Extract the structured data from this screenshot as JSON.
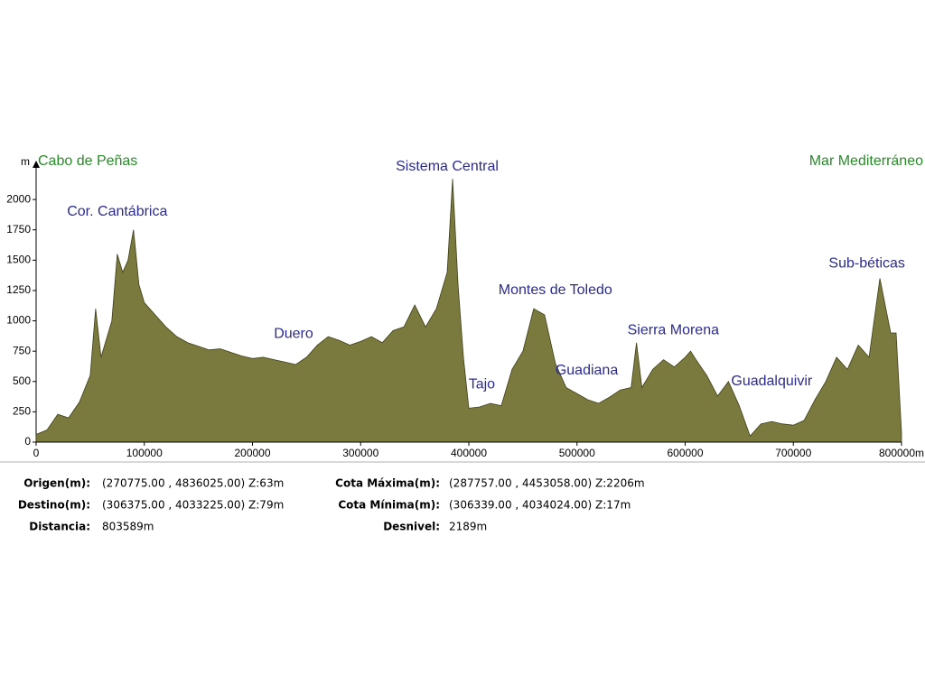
{
  "chart_data": {
    "type": "area",
    "y_unit": "m",
    "start_label": "Cabo de Peñas",
    "end_label": "Mar Mediterráneo",
    "x": [
      0,
      10000,
      20000,
      30000,
      40000,
      50000,
      55000,
      60000,
      70000,
      75000,
      80000,
      85000,
      90000,
      95000,
      100000,
      110000,
      120000,
      130000,
      140000,
      150000,
      160000,
      170000,
      180000,
      190000,
      200000,
      210000,
      220000,
      230000,
      240000,
      250000,
      260000,
      270000,
      280000,
      290000,
      300000,
      310000,
      320000,
      330000,
      340000,
      350000,
      360000,
      370000,
      380000,
      385000,
      390000,
      395000,
      400000,
      410000,
      420000,
      430000,
      440000,
      450000,
      460000,
      470000,
      480000,
      490000,
      500000,
      510000,
      520000,
      530000,
      540000,
      550000,
      555000,
      560000,
      570000,
      580000,
      590000,
      600000,
      605000,
      610000,
      620000,
      630000,
      640000,
      650000,
      660000,
      670000,
      680000,
      690000,
      700000,
      710000,
      720000,
      730000,
      740000,
      750000,
      760000,
      770000,
      780000,
      790000,
      795000,
      800000
    ],
    "values": [
      63,
      100,
      230,
      200,
      330,
      550,
      1100,
      700,
      1000,
      1550,
      1400,
      1500,
      1750,
      1300,
      1150,
      1050,
      950,
      870,
      820,
      790,
      760,
      770,
      740,
      710,
      690,
      700,
      680,
      660,
      640,
      700,
      800,
      870,
      840,
      800,
      830,
      870,
      820,
      920,
      950,
      1130,
      950,
      1100,
      1400,
      2170,
      1300,
      700,
      280,
      290,
      320,
      300,
      600,
      750,
      1100,
      1050,
      650,
      450,
      400,
      350,
      320,
      370,
      430,
      450,
      820,
      450,
      600,
      680,
      620,
      700,
      750,
      680,
      550,
      380,
      500,
      300,
      50,
      150,
      170,
      150,
      140,
      180,
      350,
      500,
      700,
      600,
      800,
      700,
      1350,
      900,
      900,
      79
    ],
    "color": "#7a7a3e",
    "xlim": [
      0,
      800000
    ],
    "xticks": [
      0,
      100000,
      200000,
      300000,
      400000,
      500000,
      600000,
      700000,
      {
        "value": 800000,
        "label": "800000m"
      }
    ],
    "ylim": [
      0,
      2250
    ],
    "yticks": [
      0,
      250,
      500,
      750,
      1000,
      1250,
      1500,
      1750,
      2000
    ],
    "annotations": [
      {
        "text": "Cor. Cantábrica",
        "x": 75000,
        "y": 1900
      },
      {
        "text": "Sistema Central",
        "x": 380000,
        "y": 2270
      },
      {
        "text": "Duero",
        "x": 238000,
        "y": 890
      },
      {
        "text": "Tajo",
        "x": 412000,
        "y": 475
      },
      {
        "text": "Montes de Toledo",
        "x": 480000,
        "y": 1250
      },
      {
        "text": "Guadiana",
        "x": 509000,
        "y": 590
      },
      {
        "text": "Sierra Morena",
        "x": 589000,
        "y": 920
      },
      {
        "text": "Guadalquivir",
        "x": 680000,
        "y": 500
      },
      {
        "text": "Sub-béticas",
        "x": 768000,
        "y": 1470
      }
    ]
  },
  "info": {
    "left": [
      {
        "label": "Origen(m):",
        "value": "(270775.00 , 4836025.00) Z:63m"
      },
      {
        "label": "Destino(m):",
        "value": "(306375.00 , 4033225.00) Z:79m"
      },
      {
        "label": "Distancia:",
        "value": "803589m"
      }
    ],
    "right": [
      {
        "label": "Cota Máxima(m):",
        "value": "(287757.00 , 4453058.00) Z:2206m"
      },
      {
        "label": "Cota Mínima(m):",
        "value": "(306339.00 , 4034024.00) Z:17m"
      },
      {
        "label": "Desnivel:",
        "value": "2189m"
      }
    ]
  }
}
